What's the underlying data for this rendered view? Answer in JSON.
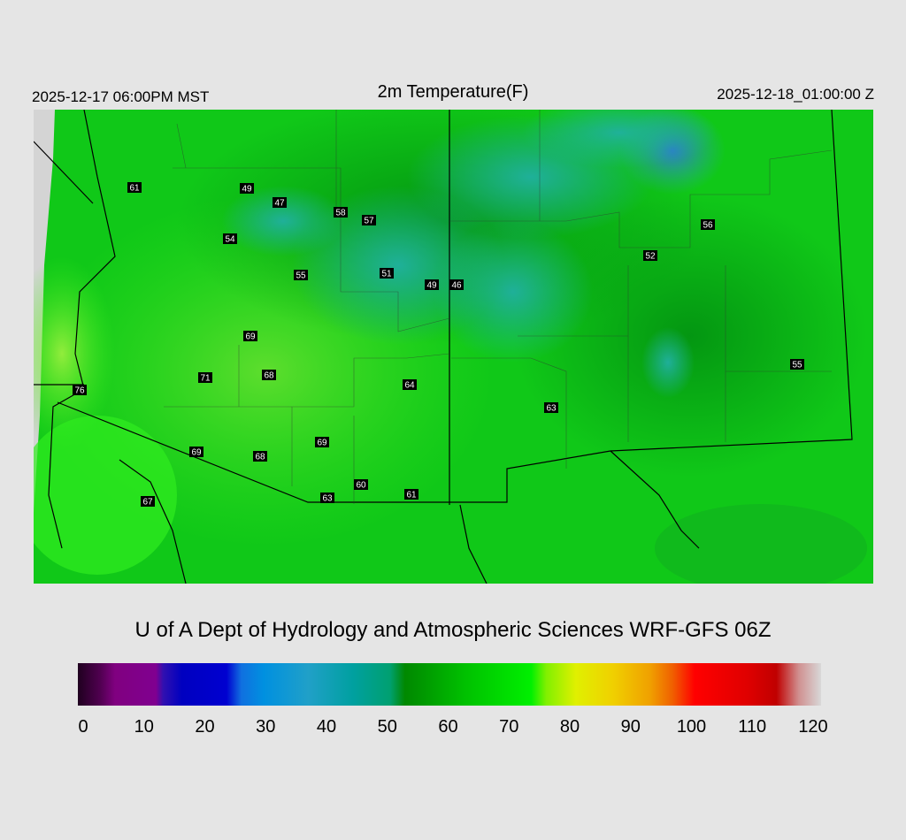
{
  "header": {
    "left": "2025-12-17 06:00PM MST",
    "title": "2m Temperature(F)",
    "right": "2025-12-18_01:00:00 Z"
  },
  "stations": [
    61,
    49,
    47,
    58,
    57,
    54,
    55,
    51,
    49,
    46,
    56,
    52,
    69,
    71,
    68,
    64,
    76,
    63,
    55,
    69,
    69,
    68,
    60,
    61,
    63,
    67
  ],
  "credit": "U of A Dept of Hydrology and Atmospheric Sciences WRF-GFS 06Z",
  "colorbar": {
    "ticks": [
      0,
      10,
      20,
      30,
      40,
      50,
      60,
      70,
      80,
      90,
      100,
      110,
      120
    ]
  }
}
